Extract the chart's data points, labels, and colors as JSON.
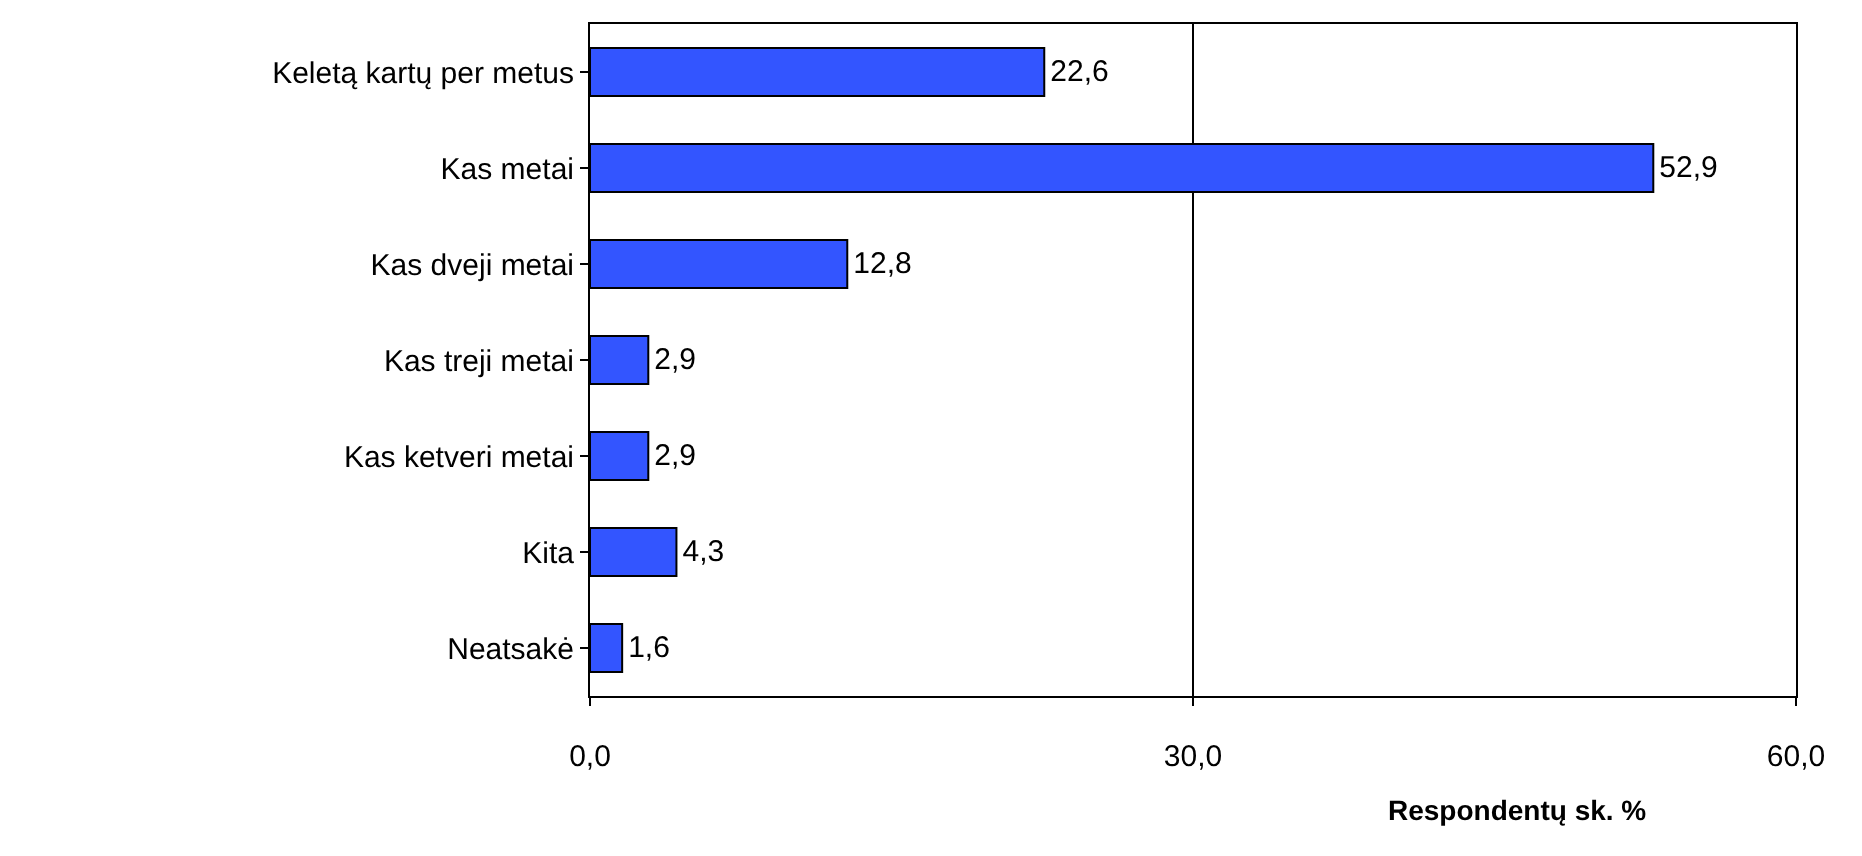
{
  "chart_data": {
    "type": "bar",
    "orientation": "horizontal",
    "categories": [
      "Keletą kartų per metus",
      "Kas metai",
      "Kas dveji metai",
      "Kas treji metai",
      "Kas ketveri metai",
      "Kita",
      "Neatsakė"
    ],
    "values": [
      22.6,
      52.9,
      12.8,
      2.9,
      2.9,
      4.3,
      1.6
    ],
    "value_labels": [
      "22,6",
      "52,9",
      "12,8",
      "2,9",
      "2,9",
      "4,3",
      "1,6"
    ],
    "color": "#3355ff",
    "xlabel": "Respondentų sk. %",
    "xlim": [
      0,
      60
    ],
    "xticks": [
      {
        "value": 0,
        "label": "0,0"
      },
      {
        "value": 30,
        "label": "30,0"
      },
      {
        "value": 60,
        "label": "60,0"
      }
    ],
    "grid": "x",
    "legend": false
  }
}
